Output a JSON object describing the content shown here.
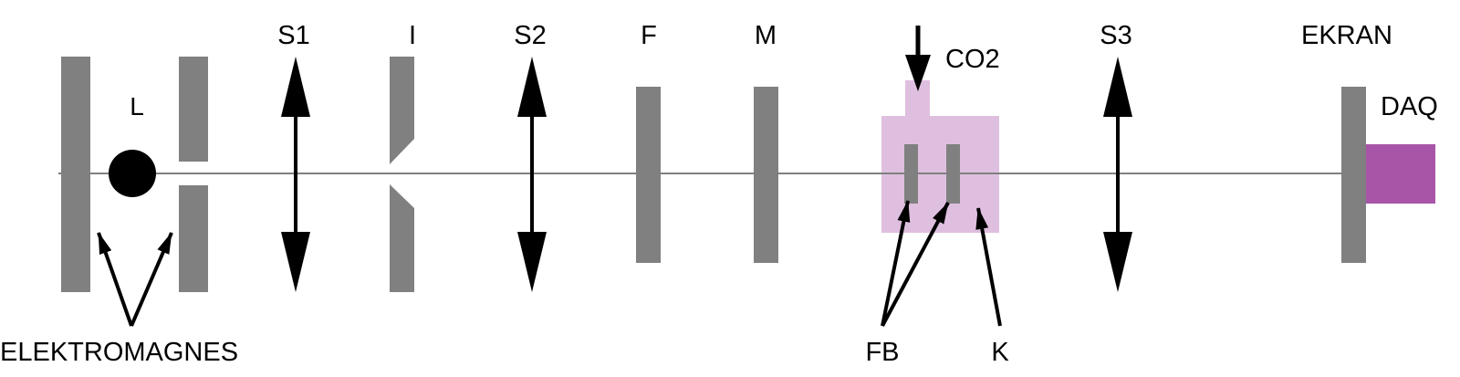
{
  "labels": {
    "s1": "S1",
    "iris": "I",
    "s2": "S2",
    "filter": "F",
    "mirror": "M",
    "co2": "CO2",
    "s3": "S3",
    "screen": "EKRAN",
    "laser": "L",
    "daq": "DAQ",
    "electromagnet": "ELEKTROMAGNES",
    "fb": "FB",
    "k": "K"
  },
  "colors": {
    "component": "#808080",
    "axis": "#808080",
    "chamber": "#dfbfdf",
    "daq": "#a855a8",
    "ink": "#000000"
  }
}
